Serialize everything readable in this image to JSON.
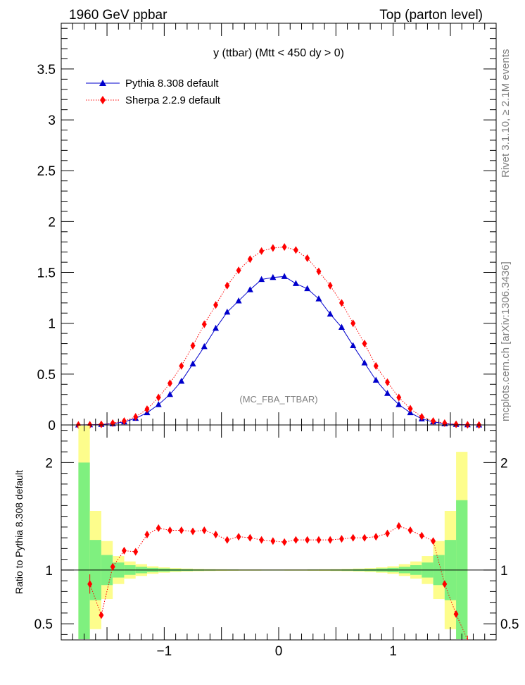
{
  "header": {
    "left": "1960 GeV ppbar",
    "right": "Top (parton level)"
  },
  "side": {
    "rivet": "Rivet 3.1.10, ≥ 2.1M events",
    "mcplots": "mcplots.cern.ch [arXiv:1306.3436]"
  },
  "chart_data": [
    {
      "type": "line",
      "title": "y (ttbar) (Mtt < 450 dy > 0)",
      "watermark": "(MC_FBA_TTBAR)",
      "xlim": [
        -1.9,
        1.9
      ],
      "ylim": [
        0,
        3.95
      ],
      "yticks": [
        0,
        0.5,
        1,
        1.5,
        2,
        2.5,
        3,
        3.5
      ],
      "ytick_labels": [
        "0",
        "0.5",
        "1",
        "1.5",
        "2",
        "2.5",
        "3",
        "3.5"
      ],
      "legend_position": "top-left",
      "x": [
        -1.75,
        -1.65,
        -1.55,
        -1.45,
        -1.35,
        -1.25,
        -1.15,
        -1.05,
        -0.95,
        -0.85,
        -0.75,
        -0.65,
        -0.55,
        -0.45,
        -0.35,
        -0.25,
        -0.15,
        -0.05,
        0.05,
        0.15,
        0.25,
        0.35,
        0.45,
        0.55,
        0.65,
        0.75,
        0.85,
        0.95,
        1.05,
        1.15,
        1.25,
        1.35,
        1.45,
        1.55,
        1.65,
        1.75
      ],
      "series": [
        {
          "name": "Pythia 8.308 default",
          "color": "#0000cc",
          "marker": "triangle",
          "line": "solid",
          "values": [
            0.0,
            0.002,
            0.005,
            0.012,
            0.03,
            0.065,
            0.12,
            0.2,
            0.3,
            0.43,
            0.6,
            0.77,
            0.95,
            1.11,
            1.22,
            1.33,
            1.43,
            1.45,
            1.46,
            1.39,
            1.34,
            1.24,
            1.09,
            0.96,
            0.78,
            0.61,
            0.44,
            0.31,
            0.2,
            0.12,
            0.06,
            0.03,
            0.012,
            0.005,
            0.002,
            0.0
          ]
        },
        {
          "name": "Sherpa 2.2.9 default",
          "color": "#ff0000",
          "marker": "diamond",
          "line": "dotted",
          "values": [
            0.0,
            0.002,
            0.006,
            0.018,
            0.038,
            0.08,
            0.155,
            0.27,
            0.41,
            0.58,
            0.78,
            0.99,
            1.18,
            1.37,
            1.52,
            1.63,
            1.71,
            1.74,
            1.75,
            1.72,
            1.64,
            1.51,
            1.37,
            1.2,
            1.0,
            0.8,
            0.58,
            0.42,
            0.27,
            0.16,
            0.08,
            0.038,
            0.018,
            0.006,
            0.002,
            0.0
          ]
        }
      ]
    },
    {
      "type": "line",
      "ylabel": "Ratio to Pythia 8.308 default",
      "xlim": [
        -1.9,
        1.9
      ],
      "ylim": [
        0.35,
        2.35
      ],
      "xticks": [
        -1,
        0,
        1
      ],
      "xtick_labels": [
        "−1",
        "0",
        "1"
      ],
      "yticks": [
        0.5,
        1,
        2
      ],
      "ytick_labels": [
        "0.5",
        "1",
        "2"
      ],
      "x": [
        -1.65,
        -1.55,
        -1.45,
        -1.35,
        -1.25,
        -1.15,
        -1.05,
        -0.95,
        -0.85,
        -0.75,
        -0.65,
        -0.55,
        -0.45,
        -0.35,
        -0.25,
        -0.15,
        -0.05,
        0.05,
        0.15,
        0.25,
        0.35,
        0.45,
        0.55,
        0.65,
        0.75,
        0.85,
        0.95,
        1.05,
        1.15,
        1.25,
        1.35,
        1.45,
        1.55,
        1.65
      ],
      "series": [
        {
          "name": "Sherpa 2.2.9 default",
          "color": "#ff0000",
          "values": [
            0.87,
            0.58,
            1.03,
            1.18,
            1.17,
            1.33,
            1.39,
            1.37,
            1.37,
            1.36,
            1.37,
            1.33,
            1.28,
            1.31,
            1.3,
            1.28,
            1.27,
            1.26,
            1.28,
            1.28,
            1.28,
            1.28,
            1.29,
            1.3,
            1.3,
            1.31,
            1.34,
            1.41,
            1.37,
            1.32,
            1.27,
            0.87,
            0.59,
            0.3
          ],
          "errors": [
            0.09,
            0.03,
            0.03,
            0.02,
            0.02,
            0.01,
            0.01,
            0.01,
            0.01,
            0.01,
            0.01,
            0.01,
            0.01,
            0.01,
            0.01,
            0.01,
            0.01,
            0.01,
            0.01,
            0.01,
            0.01,
            0.01,
            0.01,
            0.01,
            0.01,
            0.01,
            0.01,
            0.01,
            0.01,
            0.01,
            0.02,
            0.03,
            0.03,
            0.09
          ]
        }
      ],
      "bands": {
        "edges": [
          -1.75,
          -1.65,
          -1.55,
          -1.45,
          -1.35,
          -1.25,
          -1.15,
          -1.05,
          -0.95,
          -0.85,
          -0.75,
          -0.65,
          -0.55,
          -0.45,
          -0.35,
          -0.25,
          -0.15,
          -0.05,
          0.05,
          0.15,
          0.25,
          0.35,
          0.45,
          0.55,
          0.65,
          0.75,
          0.85,
          0.95,
          1.05,
          1.15,
          1.25,
          1.35,
          1.45,
          1.55,
          1.65,
          1.75
        ],
        "green_err": [
          1.0,
          0.28,
          0.14,
          0.07,
          0.045,
          0.03,
          0.02,
          0.015,
          0.01,
          0.008,
          0.006,
          0.005,
          0.004,
          0.004,
          0.003,
          0.003,
          0.003,
          0.003,
          0.003,
          0.003,
          0.004,
          0.004,
          0.005,
          0.006,
          0.008,
          0.01,
          0.015,
          0.02,
          0.03,
          0.045,
          0.07,
          0.14,
          0.28,
          0.65
        ],
        "yellow_err": [
          1.4,
          0.55,
          0.27,
          0.13,
          0.08,
          0.055,
          0.035,
          0.025,
          0.018,
          0.014,
          0.011,
          0.009,
          0.008,
          0.007,
          0.006,
          0.006,
          0.005,
          0.005,
          0.006,
          0.006,
          0.007,
          0.008,
          0.009,
          0.011,
          0.014,
          0.018,
          0.025,
          0.035,
          0.055,
          0.08,
          0.13,
          0.27,
          0.55,
          1.1
        ],
        "green": "#7ff07f",
        "yellow": "#fdfd8c"
      }
    }
  ]
}
